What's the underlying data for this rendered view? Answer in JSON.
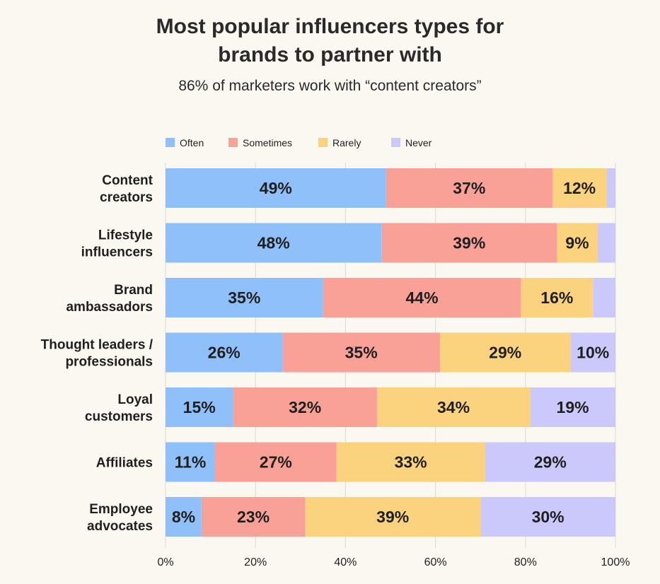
{
  "title_line1": "Most popular influencers types for",
  "title_line2": "brands to partner with",
  "subtitle": "86% of marketers work with “content creators”",
  "chart_data": {
    "type": "bar",
    "orientation": "horizontal",
    "stacked": true,
    "categories": [
      [
        "Content",
        "creators"
      ],
      [
        "Lifestyle",
        "influencers"
      ],
      [
        "Brand",
        "ambassadors"
      ],
      [
        "Thought leaders /",
        "professionals"
      ],
      [
        "Loyal",
        "customers"
      ],
      [
        "Affiliates"
      ],
      [
        "Employee",
        "advocates"
      ]
    ],
    "series": [
      {
        "name": "Often",
        "color": "#8fc0fa",
        "values": [
          49,
          48,
          35,
          26,
          15,
          11,
          8
        ]
      },
      {
        "name": "Sometimes",
        "color": "#f9a197",
        "values": [
          37,
          39,
          44,
          35,
          32,
          27,
          23
        ]
      },
      {
        "name": "Rarely",
        "color": "#fbd37f",
        "values": [
          12,
          9,
          16,
          29,
          34,
          33,
          39
        ]
      },
      {
        "name": "Never",
        "color": "#cbc9fb",
        "values": [
          2,
          4,
          5,
          10,
          19,
          29,
          30
        ]
      }
    ],
    "data_labels": [
      [
        "49%",
        "37%",
        "12%",
        ""
      ],
      [
        "48%",
        "39%",
        "9%",
        ""
      ],
      [
        "35%",
        "44%",
        "16%",
        ""
      ],
      [
        "26%",
        "35%",
        "29%",
        "10%"
      ],
      [
        "15%",
        "32%",
        "34%",
        "19%"
      ],
      [
        "11%",
        "27%",
        "33%",
        "29%"
      ],
      [
        "8%",
        "23%",
        "39%",
        "30%"
      ]
    ],
    "xlim": [
      0,
      100
    ],
    "xticks": [
      "0%",
      "20%",
      "40%",
      "60%",
      "80%",
      "100%"
    ],
    "grid": true,
    "legend_position": "top-left"
  }
}
